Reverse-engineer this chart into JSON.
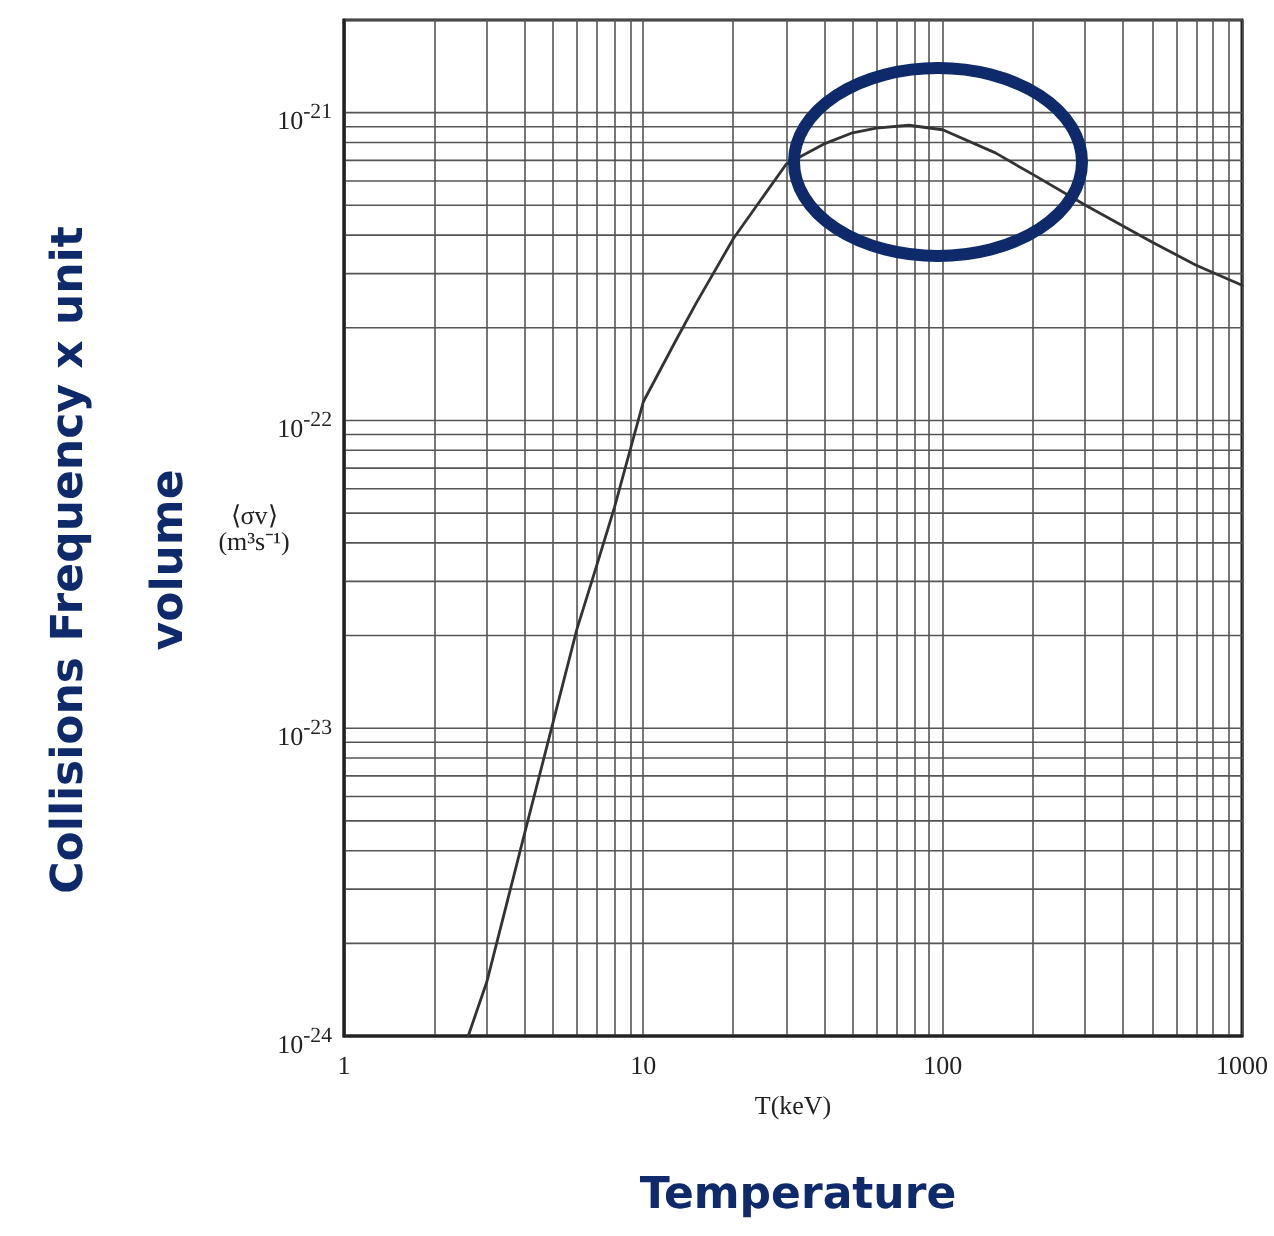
{
  "chart_data": {
    "type": "line",
    "xlabel": "T(keV)",
    "ylabel": "⟨σv⟩ (m³s⁻¹)",
    "annotations": [
      "Collisions Frequency  x unit volume",
      "Temperature"
    ],
    "x": [
      2.6,
      3,
      4,
      5,
      6,
      7,
      8,
      10,
      13,
      15,
      20,
      30,
      40,
      50,
      60,
      77,
      100,
      150,
      200,
      300,
      500,
      700,
      1000
    ],
    "values": [
      1e-24,
      1.5e-24,
      4.5e-24,
      1.05e-23,
      2.1e-23,
      3.4e-23,
      5.2e-23,
      1.15e-22,
      1.86e-22,
      2.4e-22,
      3.9e-22,
      6.8e-22,
      7.9e-22,
      8.6e-22,
      8.9e-22,
      9.1e-22,
      8.8e-22,
      7.4e-22,
      6.3e-22,
      5e-22,
      3.8e-22,
      3.2e-22,
      2.75e-22
    ],
    "color": "#333333",
    "line_style": "solid",
    "marker": "none",
    "xlim": [
      1,
      1000
    ],
    "xticks": [
      1,
      10,
      100,
      1000
    ],
    "ylim": [
      1e-24,
      2e-21
    ],
    "yticks": [
      {
        "value": 1e-24,
        "label": "10$^{-24}$"
      },
      {
        "value": 1e-23,
        "label": "10$^{-23}$"
      },
      {
        "value": 1e-22,
        "label": "10$^{-22}$"
      },
      {
        "value": 1e-21,
        "label": "10$^{-21}$"
      }
    ],
    "log": "xy",
    "grid": true
  }
}
